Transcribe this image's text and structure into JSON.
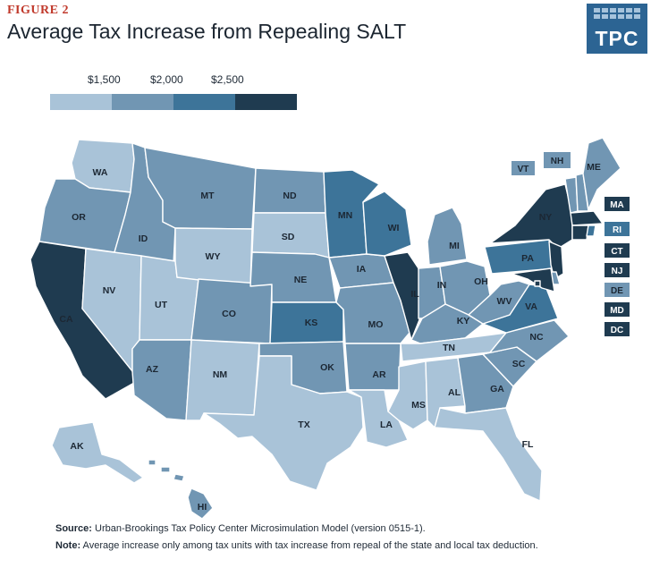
{
  "figure_label": "FIGURE 2",
  "title": "Average Tax Increase from Repealing SALT",
  "logo_text": "TPC",
  "legend": {
    "ticks": [
      "$1,500",
      "$2,000",
      "$2,500"
    ],
    "colors": [
      "#a9c3d8",
      "#7196b3",
      "#3d7499",
      "#1f3b50"
    ]
  },
  "states": {
    "WA": {
      "label": "WA",
      "bin": 0
    },
    "OR": {
      "label": "OR",
      "bin": 1
    },
    "CA": {
      "label": "CA",
      "bin": 3
    },
    "ID": {
      "label": "ID",
      "bin": 1
    },
    "NV": {
      "label": "NV",
      "bin": 0
    },
    "UT": {
      "label": "UT",
      "bin": 0
    },
    "AZ": {
      "label": "AZ",
      "bin": 1
    },
    "MT": {
      "label": "MT",
      "bin": 1
    },
    "WY": {
      "label": "WY",
      "bin": 0
    },
    "CO": {
      "label": "CO",
      "bin": 1
    },
    "NM": {
      "label": "NM",
      "bin": 0
    },
    "ND": {
      "label": "ND",
      "bin": 1
    },
    "SD": {
      "label": "SD",
      "bin": 0
    },
    "NE": {
      "label": "NE",
      "bin": 1
    },
    "KS": {
      "label": "KS",
      "bin": 2
    },
    "OK": {
      "label": "OK",
      "bin": 1
    },
    "TX": {
      "label": "TX",
      "bin": 0
    },
    "MN": {
      "label": "MN",
      "bin": 2
    },
    "IA": {
      "label": "IA",
      "bin": 1
    },
    "MO": {
      "label": "MO",
      "bin": 1
    },
    "AR": {
      "label": "AR",
      "bin": 1
    },
    "LA": {
      "label": "LA",
      "bin": 0
    },
    "WI": {
      "label": "WI",
      "bin": 2
    },
    "IL": {
      "label": "IL",
      "bin": 3
    },
    "MI": {
      "label": "MI",
      "bin": 1
    },
    "IN": {
      "label": "IN",
      "bin": 1
    },
    "OH": {
      "label": "OH",
      "bin": 1
    },
    "KY": {
      "label": "KY",
      "bin": 1
    },
    "TN": {
      "label": "TN",
      "bin": 0
    },
    "MS": {
      "label": "MS",
      "bin": 0
    },
    "AL": {
      "label": "AL",
      "bin": 0
    },
    "GA": {
      "label": "GA",
      "bin": 1
    },
    "FL": {
      "label": "FL",
      "bin": 0
    },
    "SC": {
      "label": "SC",
      "bin": 1
    },
    "NC": {
      "label": "NC",
      "bin": 1
    },
    "VA": {
      "label": "VA",
      "bin": 2
    },
    "WV": {
      "label": "WV",
      "bin": 1
    },
    "PA": {
      "label": "PA",
      "bin": 2
    },
    "NY": {
      "label": "NY",
      "bin": 3
    },
    "ME": {
      "label": "ME",
      "bin": 1
    },
    "VT": {
      "label": "VT",
      "bin": 1
    },
    "NH": {
      "label": "NH",
      "bin": 1
    },
    "MA": {
      "label": "MA",
      "bin": 3
    },
    "RI": {
      "label": "RI",
      "bin": 2
    },
    "CT": {
      "label": "CT",
      "bin": 3
    },
    "NJ": {
      "label": "NJ",
      "bin": 3
    },
    "DE": {
      "label": "DE",
      "bin": 1
    },
    "MD": {
      "label": "MD",
      "bin": 3
    },
    "DC": {
      "label": "DC",
      "bin": 3
    },
    "AK": {
      "label": "AK",
      "bin": 0
    },
    "HI": {
      "label": "HI",
      "bin": 1
    }
  },
  "source_label": "Source:",
  "source_text": " Urban-Brookings Tax Policy Center Microsimulation Model (version 0515-1).",
  "note_label": "Note:",
  "note_text": " Average increase only among tax units with tax increase from repeal of the state and local tax deduction."
}
